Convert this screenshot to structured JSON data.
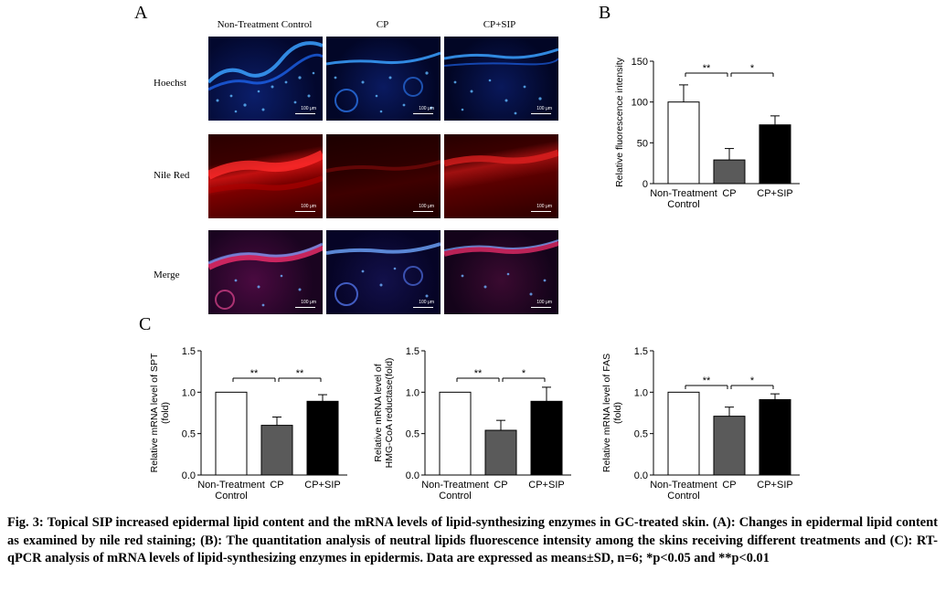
{
  "panels": {
    "A": {
      "letter": "A",
      "columns": [
        "Non-Treatment Control",
        "CP",
        "CP+SIP"
      ],
      "rows": [
        "Hoechst",
        "Nile Red",
        "Merge"
      ],
      "scale_bar": "100 μm"
    },
    "B": {
      "letter": "B"
    },
    "C": {
      "letter": "C"
    }
  },
  "chart_data": [
    {
      "id": "B",
      "type": "bar",
      "categories": [
        "Non-Treatment\nControl",
        "CP",
        "CP+SIP"
      ],
      "values": [
        100,
        29,
        72
      ],
      "errors": [
        21,
        14,
        11
      ],
      "ylabel": "Relative fluorescence intensity",
      "ylim": [
        0,
        150
      ],
      "yticks": [
        "0",
        "50",
        "100",
        "150"
      ],
      "bar_colors": [
        "#ffffff",
        "#5a5a5a",
        "#000000"
      ],
      "significance": [
        {
          "from": 0,
          "to": 1,
          "label": "**"
        },
        {
          "from": 1,
          "to": 2,
          "label": "*"
        }
      ]
    },
    {
      "id": "C1",
      "type": "bar",
      "categories": [
        "Non-Treatment\nControl",
        "CP",
        "CP+SIP"
      ],
      "values": [
        1.0,
        0.6,
        0.89
      ],
      "errors": [
        0,
        0.1,
        0.08
      ],
      "ylabel": "Relative mRNA level of SPT\n(fold)",
      "ylim": [
        0,
        1.5
      ],
      "yticks": [
        "0.0",
        "0.5",
        "1.0",
        "1.5"
      ],
      "bar_colors": [
        "#ffffff",
        "#5a5a5a",
        "#000000"
      ],
      "significance": [
        {
          "from": 0,
          "to": 1,
          "label": "**"
        },
        {
          "from": 1,
          "to": 2,
          "label": "**"
        }
      ]
    },
    {
      "id": "C2",
      "type": "bar",
      "categories": [
        "Non-Treatment\nControl",
        "CP",
        "CP+SIP"
      ],
      "values": [
        1.0,
        0.54,
        0.89
      ],
      "errors": [
        0,
        0.12,
        0.17
      ],
      "ylabel": "Relative mRNA level of\nHMG-CoA reductase(fold)",
      "ylim": [
        0,
        1.5
      ],
      "yticks": [
        "0.0",
        "0.5",
        "1.0",
        "1.5"
      ],
      "bar_colors": [
        "#ffffff",
        "#5a5a5a",
        "#000000"
      ],
      "significance": [
        {
          "from": 0,
          "to": 1,
          "label": "**"
        },
        {
          "from": 1,
          "to": 2,
          "label": "*"
        }
      ]
    },
    {
      "id": "C3",
      "type": "bar",
      "categories": [
        "Non-Treatment\nControl",
        "CP",
        "CP+SIP"
      ],
      "values": [
        1.0,
        0.71,
        0.91
      ],
      "errors": [
        0,
        0.11,
        0.07
      ],
      "ylabel": "Relative mRNA level of FAS\n(fold)",
      "ylim": [
        0,
        1.5
      ],
      "yticks": [
        "0.0",
        "0.5",
        "1.0",
        "1.5"
      ],
      "bar_colors": [
        "#ffffff",
        "#5a5a5a",
        "#000000"
      ],
      "significance": [
        {
          "from": 0,
          "to": 1,
          "label": "**"
        },
        {
          "from": 1,
          "to": 2,
          "label": "*"
        }
      ]
    }
  ],
  "caption": "Fig. 3: Topical SIP increased epidermal lipid content and the mRNA levels of lipid-synthesizing enzymes in GC-treated skin. (A): Changes in epidermal lipid content as examined by nile red staining; (B): The quantitation analysis of neutral lipids fluorescence intensity among the skins receiving different treatments and (C): RT-qPCR analysis of mRNA levels of lipid-synthesizing enzymes in epidermis. Data are expressed as means±SD, n=6; *p<0.05 and **p<0.01"
}
